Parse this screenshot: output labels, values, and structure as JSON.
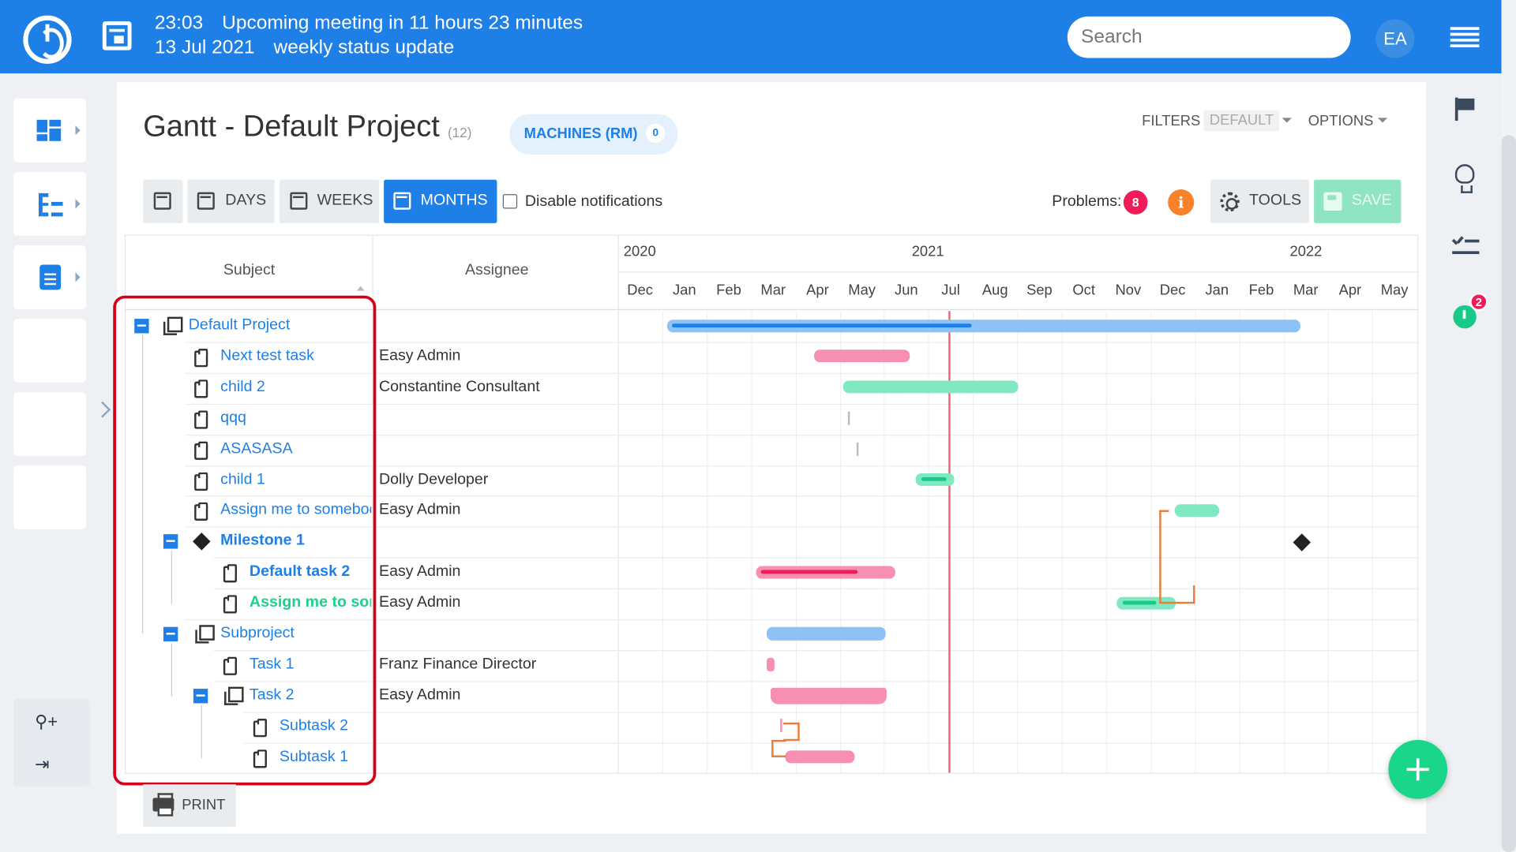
{
  "topbar": {
    "time": "23:03",
    "meeting_text": "Upcoming meeting in 11 hours 23 minutes",
    "date": "13 Jul 2021",
    "meeting_name": "weekly status update",
    "search_placeholder": "Search",
    "avatar_initials": "EA"
  },
  "page": {
    "title": "Gantt - Default Project",
    "count": "(12)",
    "chip_label": "MACHINES (RM)",
    "chip_count": "0",
    "filters_label": "FILTERS",
    "filters_value": "DEFAULT",
    "options_label": "OPTIONS"
  },
  "toolbar": {
    "days": "DAYS",
    "weeks": "WEEKS",
    "months": "MONTHS",
    "disable_notifications": "Disable notifications",
    "problems_label": "Problems:",
    "problems_count": "8",
    "info": "i",
    "tools": "TOOLS",
    "save": "SAVE",
    "print": "PRINT"
  },
  "gantt": {
    "subject_header": "Subject",
    "assignee_header": "Assignee",
    "years": [
      "2020",
      "2021",
      "2022"
    ],
    "months": [
      "Dec",
      "Jan",
      "Feb",
      "Mar",
      "Apr",
      "May",
      "Jun",
      "Jul",
      "Aug",
      "Sep",
      "Oct",
      "Nov",
      "Dec",
      "Jan",
      "Feb",
      "Mar",
      "Apr",
      "May"
    ],
    "rows": [
      {
        "subject": "Default Project",
        "assignee": ""
      },
      {
        "subject": "Next test task",
        "assignee": "Easy Admin"
      },
      {
        "subject": "child 2",
        "assignee": "Constantine Consultant"
      },
      {
        "subject": "qqq",
        "assignee": ""
      },
      {
        "subject": "ASASASA",
        "assignee": ""
      },
      {
        "subject": "child 1",
        "assignee": "Dolly Developer"
      },
      {
        "subject": "Assign me to somebody",
        "assignee": "Easy Admin"
      },
      {
        "subject": "Milestone 1",
        "assignee": ""
      },
      {
        "subject": "Default task 2",
        "assignee": "Easy Admin"
      },
      {
        "subject": "Assign me to somebody",
        "assignee": "Easy Admin"
      },
      {
        "subject": "Subproject",
        "assignee": ""
      },
      {
        "subject": "Task 1",
        "assignee": "Franz Finance Director"
      },
      {
        "subject": "Task 2",
        "assignee": "Easy Admin"
      },
      {
        "subject": "Subtask 2",
        "assignee": ""
      },
      {
        "subject": "Subtask 1",
        "assignee": ""
      }
    ]
  },
  "right_sidebar": {
    "timer_badge": "2"
  },
  "colors": {
    "brand": "#1e80e6",
    "green": "#19d68b",
    "pink": "#f78fb3",
    "problem": "#ef1c5a",
    "warning": "#f7822a",
    "today_line": "#f0646a"
  }
}
